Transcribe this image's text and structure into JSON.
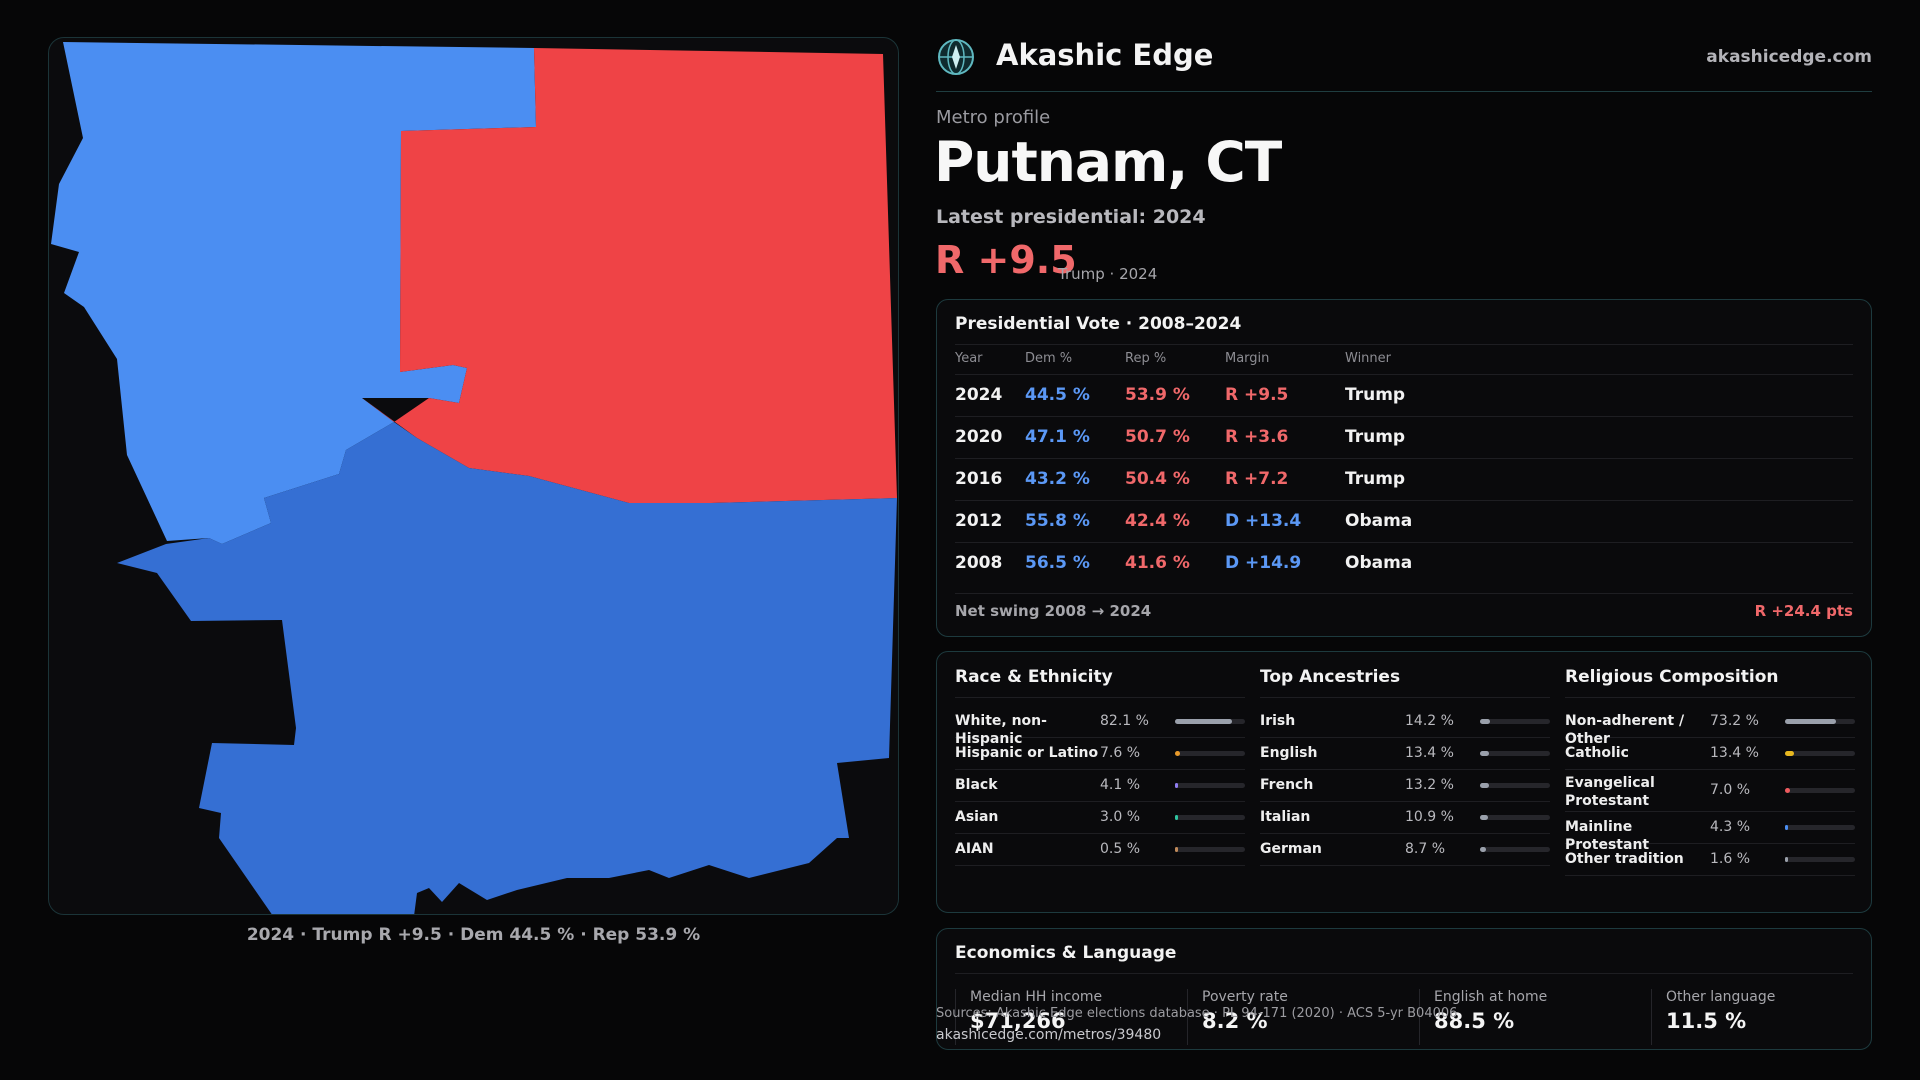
{
  "map": {
    "caption": "2024 · Trump R +9.5 · Dem 44.5 % · Rep 53.9 %",
    "colors": {
      "dem_light": "#4b8ef2",
      "dem_dark": "#356fd3",
      "rep": "#ef4346",
      "background": "#0b0b0d"
    }
  },
  "brand": {
    "name": "Akashic Edge",
    "url": "akashicedge.com",
    "logo_icon": "compass-globe-icon"
  },
  "header": {
    "eyebrow": "Metro profile",
    "title": "Putnam, CT",
    "subtitle": "Latest presidential: 2024",
    "margin": "R +9.5",
    "margin_detail": "Trump · 2024"
  },
  "vote_table": {
    "title": "Presidential Vote · 2008–2024",
    "headers": {
      "year": "Year",
      "dem": "Dem %",
      "rep": "Rep %",
      "margin": "Margin",
      "winner": "Winner"
    },
    "rows": [
      {
        "year": "2024",
        "dem": "44.5 %",
        "rep": "53.9 %",
        "margin": "R +9.5",
        "party": "R",
        "winner": "Trump"
      },
      {
        "year": "2020",
        "dem": "47.1 %",
        "rep": "50.7 %",
        "margin": "R +3.6",
        "party": "R",
        "winner": "Trump"
      },
      {
        "year": "2016",
        "dem": "43.2 %",
        "rep": "50.4 %",
        "margin": "R +7.2",
        "party": "R",
        "winner": "Trump"
      },
      {
        "year": "2012",
        "dem": "55.8 %",
        "rep": "42.4 %",
        "margin": "D +13.4",
        "party": "D",
        "winner": "Obama"
      },
      {
        "year": "2008",
        "dem": "56.5 %",
        "rep": "41.6 %",
        "margin": "D +14.9",
        "party": "D",
        "winner": "Obama"
      }
    ],
    "swing_label": "Net swing 2008 → 2024",
    "swing_value": "R +24.4 pts"
  },
  "race": {
    "title": "Race & Ethnicity",
    "rows": [
      {
        "label": "White, non-Hispanic",
        "pct": "82.1 %",
        "value": 82.1,
        "color": "#9aa0ab"
      },
      {
        "label": "Hispanic or Latino",
        "pct": "7.6 %",
        "value": 7.6,
        "color": "#e89a2a"
      },
      {
        "label": "Black",
        "pct": "4.1 %",
        "value": 4.1,
        "color": "#8f7df0"
      },
      {
        "label": "Asian",
        "pct": "3.0 %",
        "value": 3.0,
        "color": "#2fc5a0"
      },
      {
        "label": "AIAN",
        "pct": "0.5 %",
        "value": 0.5,
        "color": "#c08a5a"
      }
    ]
  },
  "ancestry": {
    "title": "Top Ancestries",
    "rows": [
      {
        "label": "Irish",
        "pct": "14.2 %",
        "value": 14.2,
        "color": "#9aa0ab"
      },
      {
        "label": "English",
        "pct": "13.4 %",
        "value": 13.4,
        "color": "#9aa0ab"
      },
      {
        "label": "French",
        "pct": "13.2 %",
        "value": 13.2,
        "color": "#9aa0ab"
      },
      {
        "label": "Italian",
        "pct": "10.9 %",
        "value": 10.9,
        "color": "#9aa0ab"
      },
      {
        "label": "German",
        "pct": "8.7 %",
        "value": 8.7,
        "color": "#9aa0ab"
      }
    ]
  },
  "religion": {
    "title": "Religious Composition",
    "rows": [
      {
        "label": "Non-adherent / Other",
        "pct": "73.2 %",
        "value": 73.2,
        "color": "#9aa0ab"
      },
      {
        "label": "Catholic",
        "pct": "13.4 %",
        "value": 13.4,
        "color": "#e8b820"
      },
      {
        "label": "Evangelical Protestant",
        "pct": "7.0 %",
        "value": 7.0,
        "color": "#ef5a5e"
      },
      {
        "label": "Mainline Protestant",
        "pct": "4.3 %",
        "value": 4.3,
        "color": "#4b8ef2"
      },
      {
        "label": "Other tradition",
        "pct": "1.6 %",
        "value": 1.6,
        "color": "#9aa0ab"
      }
    ]
  },
  "economics": {
    "title": "Economics & Language",
    "stats": [
      {
        "label": "Median HH income",
        "value": "$71,266"
      },
      {
        "label": "Poverty rate",
        "value": "8.2 %"
      },
      {
        "label": "English at home",
        "value": "88.5 %"
      },
      {
        "label": "Other language",
        "value": "11.5 %"
      }
    ]
  },
  "footer": {
    "sources": "Sources: Akashic Edge elections database · PL 94-171 (2020) · ACS 5-yr B04006",
    "url": "akashicedge.com/metros/39480"
  }
}
